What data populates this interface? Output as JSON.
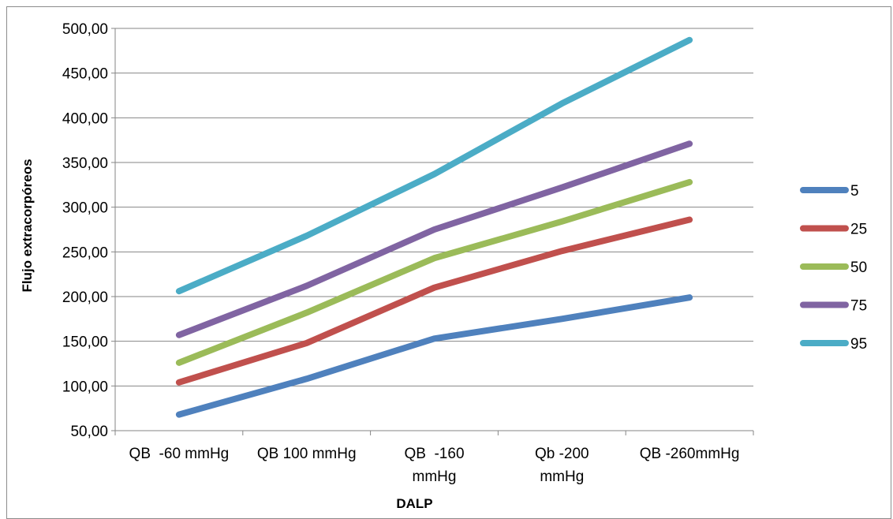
{
  "chart_data": {
    "type": "line",
    "title": "",
    "xlabel": "DALP",
    "ylabel": "Flujo extracorpóreos",
    "categories": [
      [
        "QB  -60 mmHg"
      ],
      [
        "QB 100 mmHg"
      ],
      [
        "QB  -160",
        "mmHg"
      ],
      [
        "Qb -200",
        "mmHg"
      ],
      [
        "QB -260mmHg"
      ]
    ],
    "ylim": [
      50,
      500
    ],
    "yticks": [
      "50,00",
      "100,00",
      "150,00",
      "200,00",
      "250,00",
      "300,00",
      "350,00",
      "400,00",
      "450,00",
      "500,00"
    ],
    "grid": "horizontal",
    "legend_position": "right",
    "series": [
      {
        "name": "5",
        "color": "#4f81bd",
        "values": [
          68,
          108,
          153,
          175,
          199
        ]
      },
      {
        "name": "25",
        "color": "#c0504d",
        "values": [
          104,
          148,
          210,
          251,
          286
        ]
      },
      {
        "name": "50",
        "color": "#9bbb59",
        "values": [
          126,
          182,
          243,
          284,
          328
        ]
      },
      {
        "name": "75",
        "color": "#8064a2",
        "values": [
          157,
          212,
          275,
          322,
          371
        ]
      },
      {
        "name": "95",
        "color": "#4bacc6",
        "values": [
          206,
          268,
          337,
          416,
          487
        ]
      }
    ]
  }
}
